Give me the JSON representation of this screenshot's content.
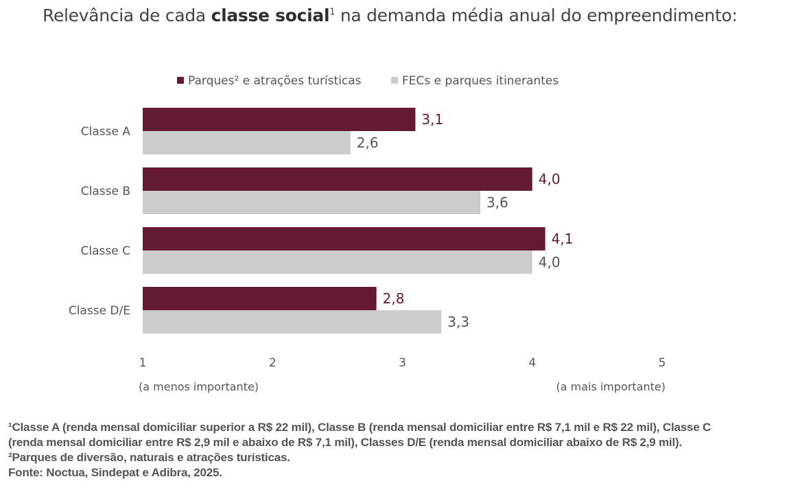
{
  "title": {
    "pre": "Relevância de cada ",
    "bold": "classe social",
    "sup": "1",
    "post": " na demanda média anual do empreendimento:"
  },
  "chart_data": {
    "type": "bar",
    "orientation": "horizontal",
    "categories": [
      "Classe A",
      "Classe B",
      "Classe C",
      "Classe D/E"
    ],
    "series": [
      {
        "name": "Parques² e atrações turísticas",
        "color": "#641a31",
        "label_color": "#641a31",
        "values": [
          3.1,
          4.0,
          4.1,
          2.8
        ],
        "labels": [
          "3,1",
          "4,0",
          "4,1",
          "2,8"
        ]
      },
      {
        "name": "FECs e parques itinerantes",
        "color": "#cccccc",
        "label_color": "#555555",
        "values": [
          2.6,
          3.6,
          4.0,
          3.3
        ],
        "labels": [
          "2,6",
          "3,6",
          "4,0",
          "3,3"
        ]
      }
    ],
    "xlim": [
      1,
      5
    ],
    "xticks": [
      "1",
      "2",
      "3",
      "4",
      "5"
    ],
    "xlabel_left": "(a menos importante)",
    "xlabel_right": "(a mais importante)",
    "legend_position": "top-left",
    "grid": false
  },
  "footnotes": [
    "¹Classe A (renda mensal domiciliar superior a R$ 22 mil), Classe B (renda mensal domiciliar entre R$ 7,1 mil e R$ 22 mil), Classe C",
    "(renda mensal domiciliar entre R$ 2,9 mil e abaixo de R$ 7,1 mil), Classes D/E (renda mensal domiciliar abaixo de R$ 2,9 mil).",
    "²Parques de diversão, naturais e atrações turísticas.",
    "Fonte: Noctua, Sindepat e Adibra, 2025."
  ]
}
